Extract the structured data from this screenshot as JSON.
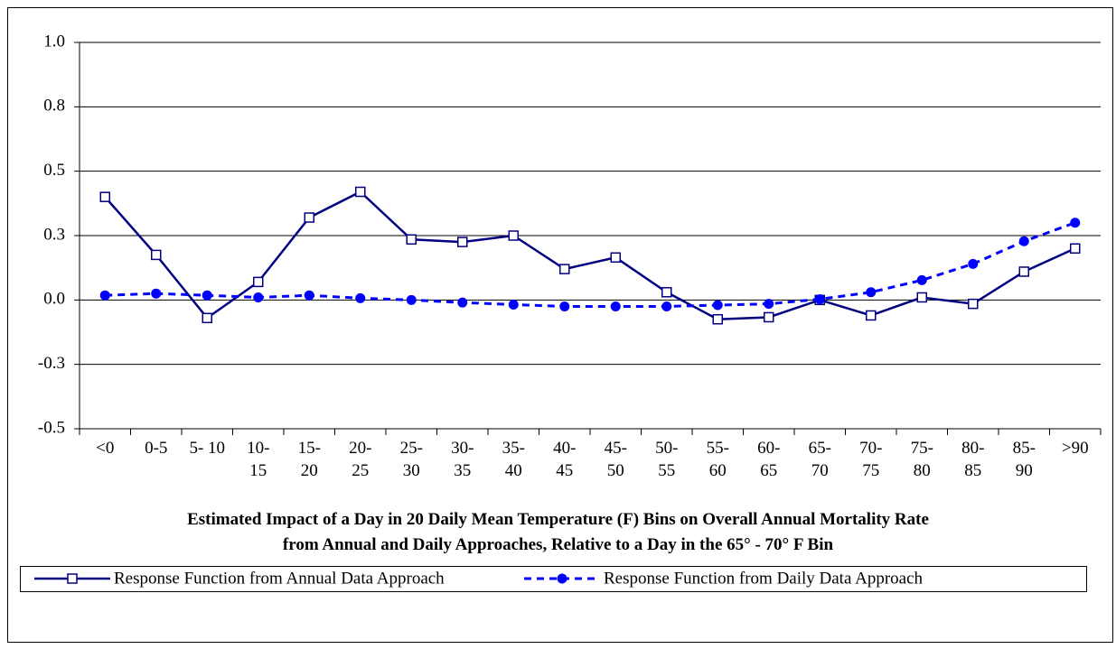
{
  "chart_data": {
    "type": "line",
    "title": [
      "Estimated Impact of a Day in 20 Daily Mean Temperature (F) Bins on Overall Annual Mortality Rate",
      "from Annual and Daily Approaches, Relative to a Day in the 65° - 70° F Bin"
    ],
    "categories": [
      "<0",
      "0-5",
      "5- 10",
      "10- 15",
      "15- 20",
      "20- 25",
      "25- 30",
      "30- 35",
      "35- 40",
      "40- 45",
      "45- 50",
      "50- 55",
      "55- 60",
      "60- 65",
      "65- 70",
      "70- 75",
      "75- 80",
      "80- 85",
      "85- 90",
      ">90"
    ],
    "series": [
      {
        "name": "Response Function from Annual Data Approach",
        "color": "#000080",
        "marker": "square",
        "dashed": false,
        "values": [
          0.4,
          0.175,
          -0.07,
          0.07,
          0.32,
          0.42,
          0.235,
          0.225,
          0.25,
          0.12,
          0.165,
          0.03,
          -0.075,
          -0.067,
          0.0,
          -0.06,
          0.01,
          -0.015,
          0.11,
          0.2
        ]
      },
      {
        "name": "Response Function from Daily Data Approach",
        "color": "#0000ff",
        "marker": "circle",
        "dashed": true,
        "values": [
          0.018,
          0.025,
          0.018,
          0.01,
          0.018,
          0.007,
          0.0,
          -0.01,
          -0.018,
          -0.025,
          -0.025,
          -0.025,
          -0.02,
          -0.015,
          0.003,
          0.03,
          0.077,
          0.14,
          0.228,
          0.3
        ]
      }
    ],
    "ylim": [
      -0.5,
      1.0
    ],
    "yticks": [
      -0.5,
      {
        "value": -0.25,
        "label": "-0.3"
      },
      {
        "value": 0,
        "label": "0.0"
      },
      {
        "value": 0.25,
        "label": "0.3"
      },
      0.5,
      {
        "value": 0.75,
        "label": "0.8"
      },
      {
        "value": 1.0,
        "label": "1.0"
      }
    ],
    "grid": true,
    "legend": "bottom"
  }
}
